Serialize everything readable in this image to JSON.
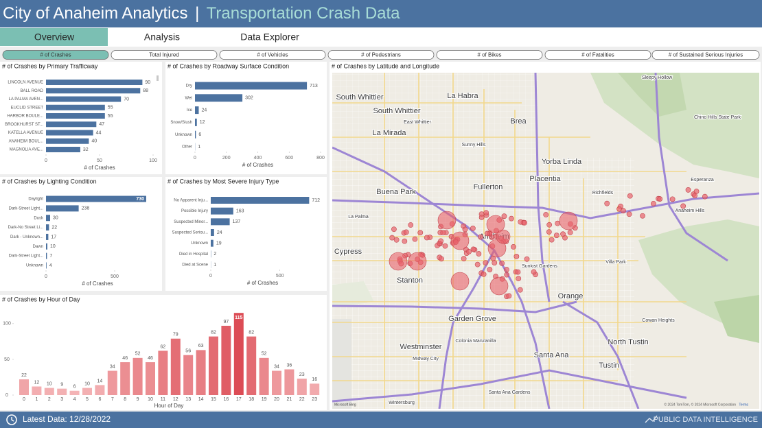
{
  "header": {
    "title": "City of Anaheim Analytics",
    "separator": "|",
    "subtitle": "Transportation Crash Data"
  },
  "tabs": [
    "Overview",
    "Analysis",
    "Data Explorer"
  ],
  "metric_buttons": [
    "# of Crashes",
    "Total Injured",
    "# of Vehicles",
    "# of Pedestrians",
    "# of Bikes",
    "# of Fatalities",
    "# of Sustained Serious Injuries"
  ],
  "chart_data": [
    {
      "type": "hbar",
      "title": "# of Crashes by Primary Trafficway",
      "categories": [
        "LINCOLN AVENUE",
        "BALL ROAD",
        "LA PALMA AVEN...",
        "EUCLID STREET",
        "HARBOR BOULE...",
        "BROOKHURST ST...",
        "KATELLA AVENUE",
        "ANAHEIM BOUL...",
        "MAGNOLIA AVE..."
      ],
      "values": [
        90,
        88,
        70,
        55,
        55,
        47,
        44,
        40,
        32
      ],
      "color": "#4c72a0",
      "xlim": [
        0,
        100
      ],
      "xticks": [
        0,
        50,
        100
      ],
      "xlabel": "# of Crashes"
    },
    {
      "type": "hbar",
      "title": "# of Crashes by Roadway Surface Condition",
      "categories": [
        "Dry",
        "Wet",
        "Ice",
        "Snow/Slush",
        "Unknown",
        "Other"
      ],
      "values": [
        713,
        302,
        24,
        12,
        6,
        1
      ],
      "color": "#4c72a0",
      "xlim": [
        0,
        800
      ],
      "xticks": [
        0,
        200,
        400,
        600,
        800
      ],
      "xlabel": "# of Crashes"
    },
    {
      "type": "hbar",
      "title": "# of Crashes by Lighting Condition",
      "categories": [
        "Daylight",
        "Dark-Street Light...",
        "Dusk",
        "Dark-No Street Li...",
        "Dark - Unknown...",
        "Dawn",
        "Dark-Street Light...",
        "Unknown"
      ],
      "values": [
        730,
        238,
        30,
        22,
        17,
        10,
        7,
        4
      ],
      "color": "#4c72a0",
      "xlim": [
        0,
        750
      ],
      "xticks": [
        0,
        500
      ],
      "xlabel": "# of Crashes"
    },
    {
      "type": "hbar",
      "title": "# of Crashes by Most Severe Injury Type",
      "categories": [
        "No Apparent Inju...",
        "Possible Injury",
        "Suspected Minor...",
        "Suspected Seriou...",
        "Unknown",
        "Died in Hospital",
        "Died at Scene"
      ],
      "values": [
        712,
        163,
        137,
        24,
        19,
        2,
        1
      ],
      "color": "#4c72a0",
      "xlim": [
        0,
        750
      ],
      "xticks": [
        0,
        500
      ],
      "xlabel": "# of Crashes"
    },
    {
      "type": "column",
      "title": "# of Crashes by Hour of Day",
      "categories": [
        0,
        1,
        2,
        3,
        4,
        5,
        6,
        7,
        8,
        9,
        10,
        11,
        12,
        13,
        14,
        15,
        16,
        17,
        18,
        19,
        20,
        21,
        22,
        23
      ],
      "values": [
        22,
        12,
        10,
        9,
        6,
        10,
        14,
        34,
        46,
        52,
        46,
        62,
        79,
        56,
        63,
        82,
        97,
        115,
        82,
        52,
        34,
        36,
        23,
        16
      ],
      "color_range": [
        "#f4b4b6",
        "#dc4c55"
      ],
      "ylim": [
        0,
        120
      ],
      "yticks": [
        0,
        50,
        100
      ],
      "xlabel": "Hour of Day"
    }
  ],
  "map": {
    "title": "# of Crashes by Latitude and Longitude",
    "labels": [
      "South Whittier",
      "La Habra",
      "South Whittier",
      "East Whittier",
      "Brea",
      "La Mirada",
      "Sunny Hills",
      "Yorba Linda",
      "Buena Park",
      "Fullerton",
      "Placentia",
      "La Palma",
      "Anaheim",
      "Cypress",
      "Stanton",
      "Orange",
      "Garden Grove",
      "Villa Park",
      "Westminster",
      "Santa Ana",
      "Tustin",
      "North Tustin",
      "Cowan Heights",
      "Midway City",
      "Colonia Manzanilla",
      "Chino Hills State Park",
      "Sleepy Hollow",
      "Richfields",
      "Esperanza",
      "Sunkist Gardens",
      "Anaheim Hills",
      "Wintersburg",
      "Santa Ana Gardens"
    ],
    "attribution": "© 2024 TomTom, © 2024 Microsoft Corporation",
    "terms": "Terms",
    "provider": "Microsoft Bing"
  },
  "footer": {
    "latest": "Latest Data: 12/28/2022",
    "brand": "PUBLIC DATA INTELLIGENCE"
  }
}
